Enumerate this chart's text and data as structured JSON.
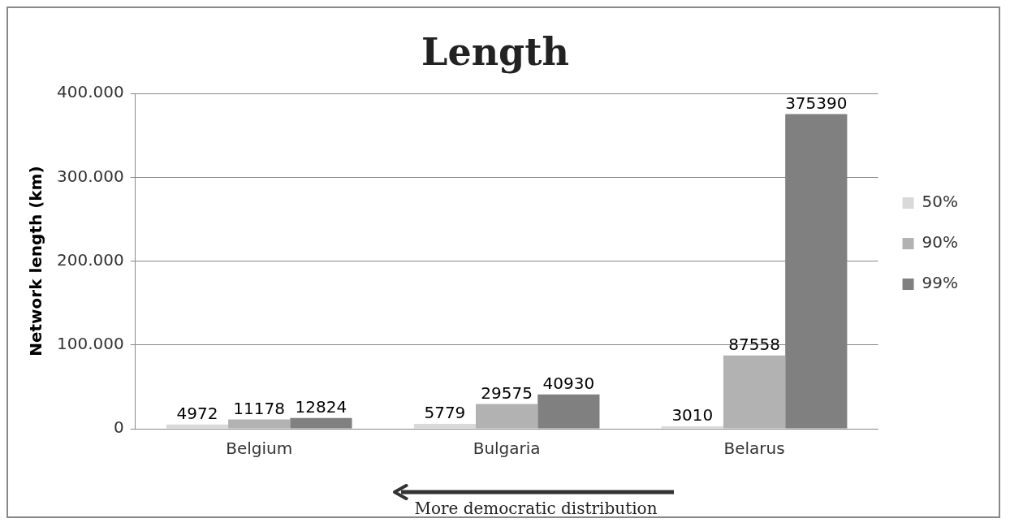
{
  "chart_data": {
    "type": "bar",
    "title": "Length",
    "ylabel": "Network length (km)",
    "categories": [
      "Belgium",
      "Bulgaria",
      "Belarus"
    ],
    "series": [
      {
        "name": "50%",
        "color": "#d9d9d9",
        "values": [
          4972,
          5779,
          3010
        ]
      },
      {
        "name": "90%",
        "color": "#b2b2b2",
        "values": [
          11178,
          29575,
          87558
        ]
      },
      {
        "name": "99%",
        "color": "#808080",
        "values": [
          12824,
          40930,
          375390
        ]
      }
    ],
    "ylim": [
      0,
      400000
    ],
    "yticks": [
      0,
      {
        "value": 100000,
        "label": "100.000"
      },
      {
        "value": 200000,
        "label": "200.000"
      },
      {
        "value": 300000,
        "label": "300.000"
      },
      {
        "value": 400000,
        "label": "400.000"
      }
    ],
    "grid": "y",
    "legend": "right",
    "data_labels": true,
    "annotations": [
      "More democratic distribution"
    ]
  }
}
